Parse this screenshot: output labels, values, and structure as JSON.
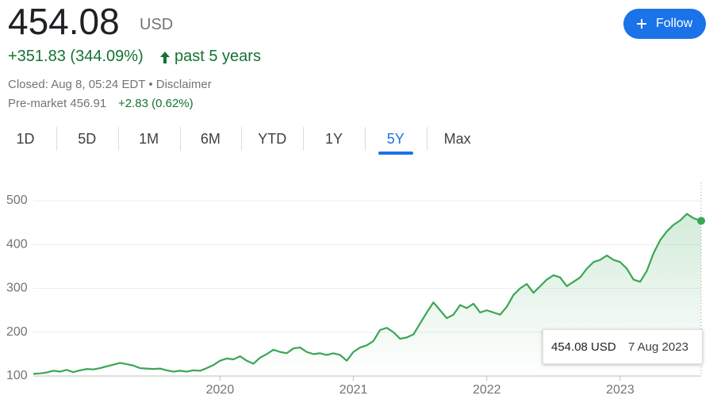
{
  "header": {
    "price": "454.08",
    "currency": "USD",
    "change": "+351.83 (344.09%)",
    "period": "past 5 years",
    "closed": "Closed: Aug 8, 05:24 EDT • Disclaimer",
    "premarket": "Pre-market 456.91",
    "premarket_change": "+2.83 (0.62%)",
    "follow": "Follow"
  },
  "tabs": [
    "1D",
    "5D",
    "1M",
    "6M",
    "YTD",
    "1Y",
    "5Y",
    "Max"
  ],
  "active_tab": 6,
  "chart_data": {
    "type": "line",
    "x": [
      2018.6,
      2018.65,
      2018.7,
      2018.75,
      2018.8,
      2018.85,
      2018.9,
      2018.95,
      2019.0,
      2019.05,
      2019.1,
      2019.15,
      2019.2,
      2019.25,
      2019.3,
      2019.35,
      2019.4,
      2019.45,
      2019.5,
      2019.55,
      2019.6,
      2019.65,
      2019.7,
      2019.75,
      2019.8,
      2019.85,
      2019.9,
      2019.95,
      2020.0,
      2020.05,
      2020.1,
      2020.15,
      2020.2,
      2020.25,
      2020.3,
      2020.35,
      2020.4,
      2020.45,
      2020.5,
      2020.55,
      2020.6,
      2020.65,
      2020.7,
      2020.75,
      2020.8,
      2020.85,
      2020.9,
      2020.95,
      2021.0,
      2021.05,
      2021.1,
      2021.15,
      2021.2,
      2021.25,
      2021.3,
      2021.35,
      2021.4,
      2021.45,
      2021.5,
      2021.55,
      2021.6,
      2021.65,
      2021.7,
      2021.75,
      2021.8,
      2021.85,
      2021.9,
      2021.95,
      2022.0,
      2022.05,
      2022.1,
      2022.15,
      2022.2,
      2022.25,
      2022.3,
      2022.35,
      2022.4,
      2022.45,
      2022.5,
      2022.55,
      2022.6,
      2022.65,
      2022.7,
      2022.75,
      2022.8,
      2022.85,
      2022.9,
      2022.95,
      2023.0,
      2023.05,
      2023.1,
      2023.15,
      2023.2,
      2023.25,
      2023.3,
      2023.35,
      2023.4,
      2023.45,
      2023.5,
      2023.55,
      2023.607
    ],
    "series": [
      {
        "color": "#3aa655",
        "values": [
          105,
          106,
          108,
          112,
          110,
          114,
          109,
          113,
          116,
          115,
          118,
          122,
          126,
          130,
          127,
          124,
          118,
          117,
          116,
          117,
          113,
          110,
          112,
          110,
          113,
          112,
          118,
          125,
          135,
          140,
          138,
          145,
          135,
          128,
          142,
          150,
          160,
          155,
          152,
          163,
          165,
          155,
          150,
          152,
          148,
          152,
          148,
          135,
          155,
          165,
          170,
          180,
          205,
          210,
          200,
          185,
          188,
          195,
          220,
          245,
          268,
          250,
          232,
          240,
          262,
          255,
          265,
          245,
          250,
          245,
          240,
          258,
          285,
          300,
          310,
          290,
          305,
          320,
          330,
          325,
          305,
          315,
          325,
          345,
          360,
          365,
          375,
          365,
          360,
          345,
          320,
          315,
          340,
          380,
          410,
          430,
          445,
          455,
          470,
          460,
          454.08
        ]
      }
    ],
    "xlim": [
      2018.6,
      2023.607
    ],
    "xticks": [
      2020,
      2021,
      2022,
      2023
    ],
    "ylim": [
      100,
      500
    ],
    "yticks": [
      100,
      200,
      300,
      400,
      500
    ],
    "grid": true,
    "tooltip": {
      "price": "454.08 USD",
      "date": "7 Aug 2023"
    }
  }
}
